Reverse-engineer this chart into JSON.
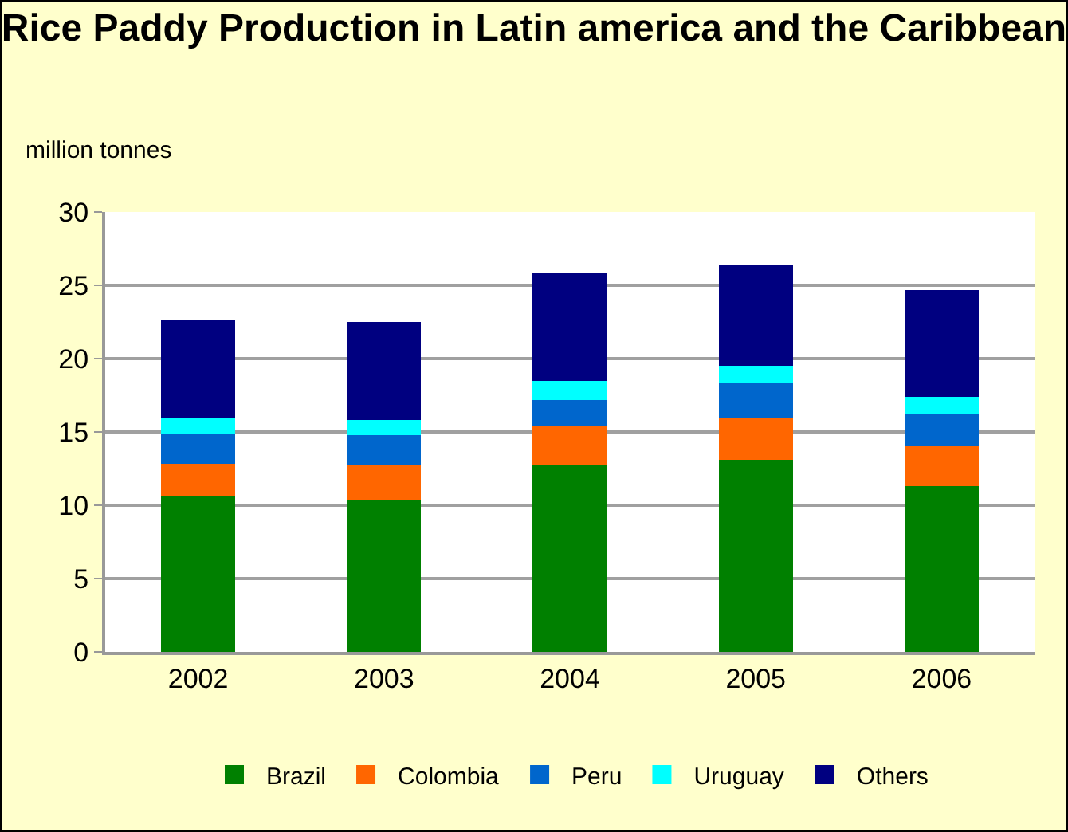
{
  "chart_data": {
    "type": "bar",
    "title": "Rice Paddy Production in Latin america and the Caribbean",
    "ylabel": "million tonnes",
    "categories": [
      "2002",
      "2003",
      "2004",
      "2005",
      "2006"
    ],
    "stacked": true,
    "series": [
      {
        "name": "Brazil",
        "color": "#008000",
        "values": [
          10.6,
          10.3,
          12.7,
          13.1,
          11.3
        ]
      },
      {
        "name": "Colombia",
        "color": "#ff6600",
        "values": [
          2.2,
          2.4,
          2.7,
          2.8,
          2.7
        ]
      },
      {
        "name": "Peru",
        "color": "#0066cc",
        "values": [
          2.1,
          2.1,
          1.8,
          2.4,
          2.2
        ]
      },
      {
        "name": "Uruguay",
        "color": "#00ffff",
        "values": [
          1.0,
          1.0,
          1.3,
          1.2,
          1.2
        ]
      },
      {
        "name": "Others",
        "color": "#000080",
        "values": [
          6.7,
          6.7,
          7.3,
          6.9,
          7.3
        ]
      }
    ],
    "ylim": [
      0,
      30
    ],
    "yticks": [
      0,
      5,
      10,
      15,
      20,
      25,
      30
    ],
    "grid": "y",
    "legend": "bottom"
  }
}
